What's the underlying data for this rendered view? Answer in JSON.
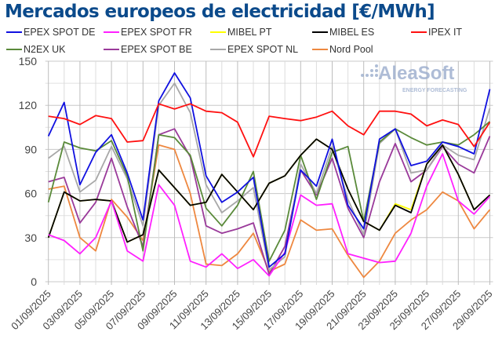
{
  "chart_data": {
    "type": "line",
    "title": "Mercados europeos de electricidad [€/MWh]",
    "xlabel": "",
    "ylabel": "",
    "x": [
      "01/09/2025",
      "02/09/2025",
      "03/09/2025",
      "04/09/2025",
      "05/09/2025",
      "06/09/2025",
      "07/09/2025",
      "08/09/2025",
      "09/09/2025",
      "10/09/2025",
      "11/09/2025",
      "12/09/2025",
      "13/09/2025",
      "14/09/2025",
      "15/09/2025",
      "16/09/2025",
      "17/09/2025",
      "18/09/2025",
      "19/09/2025",
      "20/09/2025",
      "21/09/2025",
      "22/09/2025",
      "23/09/2025",
      "24/09/2025",
      "25/09/2025",
      "26/09/2025",
      "27/09/2025",
      "28/09/2025",
      "29/09/2025"
    ],
    "xtick_labels": [
      "01/09/2025",
      "03/09/2025",
      "05/09/2025",
      "07/09/2025",
      "09/09/2025",
      "11/09/2025",
      "13/09/2025",
      "15/09/2025",
      "17/09/2025",
      "19/09/2025",
      "21/09/2025",
      "23/09/2025",
      "25/09/2025",
      "27/09/2025",
      "29/09/2025"
    ],
    "ylim": [
      0,
      150
    ],
    "yticks": [
      0,
      30,
      60,
      90,
      120,
      150
    ],
    "grid": true,
    "legend_placement": "top",
    "series": [
      {
        "name": "EPEX SPOT DE",
        "color": "#1010e0",
        "values": [
          99,
          122,
          66,
          88,
          100,
          74,
          42,
          123,
          142,
          125,
          72,
          54,
          61,
          71,
          10,
          19,
          76,
          65,
          97,
          52,
          36,
          97,
          104,
          79,
          82,
          95,
          92,
          87,
          131
        ]
      },
      {
        "name": "EPEX SPOT FR",
        "color": "#ff20ff",
        "values": [
          32,
          28,
          19,
          30,
          55,
          21,
          14,
          66,
          52,
          14,
          10,
          19,
          9,
          15,
          4,
          20,
          59,
          52,
          53,
          19,
          16,
          13,
          14,
          33,
          65,
          87,
          55,
          46,
          58
        ]
      },
      {
        "name": "MIBEL PT",
        "color": "#ffff00",
        "values": [
          30,
          61,
          55,
          56,
          55,
          27,
          32,
          76,
          64,
          52,
          54,
          73,
          61,
          49,
          67,
          72,
          86,
          97,
          90,
          63,
          41,
          35,
          53,
          49,
          80,
          93,
          73,
          49,
          59
        ]
      },
      {
        "name": "MIBEL ES",
        "color": "#000000",
        "values": [
          30,
          61,
          55,
          56,
          55,
          27,
          32,
          76,
          64,
          52,
          54,
          73,
          61,
          49,
          67,
          72,
          86,
          97,
          90,
          63,
          41,
          35,
          52,
          47,
          80,
          93,
          73,
          49,
          59
        ]
      },
      {
        "name": "IPEX IT",
        "color": "#ff1010",
        "values": [
          112.6,
          111,
          107,
          113,
          111,
          95,
          96,
          121,
          117.5,
          121,
          116,
          115,
          108.5,
          85,
          112.6,
          111,
          109.6,
          112,
          116,
          106,
          100,
          116,
          116,
          114,
          106,
          110,
          107,
          92,
          108.5
        ]
      },
      {
        "name": "N2EX UK",
        "color": "#5a8a3a",
        "values": [
          54,
          95,
          91,
          89,
          96,
          72,
          21,
          100,
          98,
          86,
          50,
          38,
          52,
          75,
          14,
          35,
          86,
          56,
          88,
          92,
          41,
          95,
          104,
          98,
          93,
          95,
          93,
          100,
          109
        ]
      },
      {
        "name": "EPEX SPOT BE",
        "color": "#9a3a9a",
        "values": [
          68,
          71,
          40,
          54,
          84,
          51,
          24,
          100,
          104,
          85,
          38,
          33,
          36,
          40,
          5,
          24,
          76,
          59,
          84,
          50,
          30,
          68,
          94,
          68,
          76,
          92,
          80,
          74,
          99
        ]
      },
      {
        "name": "EPEX SPOT NL",
        "color": "#a8a8a8",
        "values": [
          84,
          92,
          61,
          69,
          92,
          70,
          38,
          120,
          135,
          115,
          66,
          47,
          55,
          64,
          8,
          17,
          80,
          60,
          92,
          56,
          32,
          94,
          104,
          74,
          76,
          93,
          86,
          83,
          118
        ]
      },
      {
        "name": "Nord Pool",
        "color": "#ee8840",
        "values": [
          63,
          65,
          30,
          21,
          56,
          44,
          28,
          93,
          90,
          60,
          12,
          11,
          19,
          33,
          7,
          12,
          42,
          35,
          36,
          18,
          3,
          14,
          33,
          42,
          49,
          61,
          55,
          36,
          49
        ]
      }
    ]
  },
  "watermark": {
    "brand": "AleaSoft",
    "tagline": "ENERGY FORECASTING"
  }
}
